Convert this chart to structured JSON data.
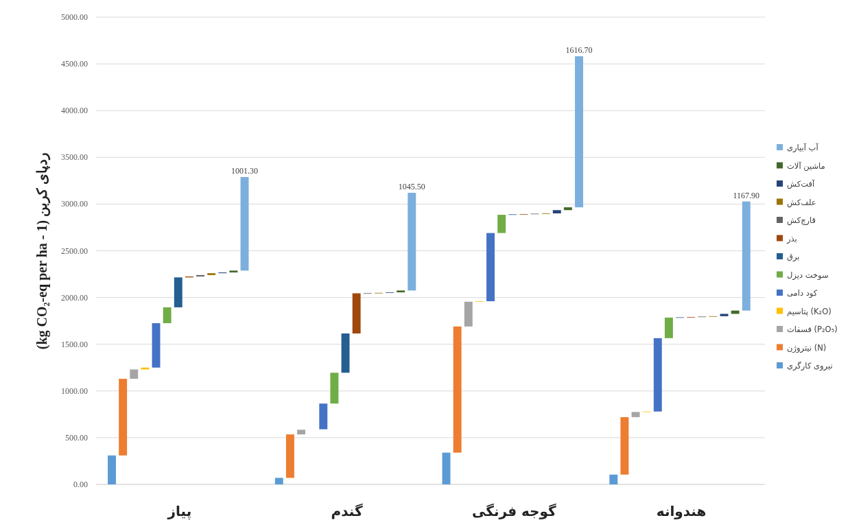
{
  "chart_data": {
    "type": "bar",
    "ylabel": "(kg CO₂-eq per ha - 1) ردپای کربن",
    "categories": [
      "پیاز",
      "گندم",
      "گوجه فرنگی",
      "هندوانه"
    ],
    "ylim": [
      0,
      5000
    ],
    "yticks": [
      {
        "value": 0,
        "label": "0.00"
      },
      {
        "value": 500,
        "label": "500.00"
      },
      {
        "value": 1000,
        "label": "1000.00"
      },
      {
        "value": 1500,
        "label": "1500.00"
      },
      {
        "value": 2000,
        "label": "2000.00"
      },
      {
        "value": 2500,
        "label": "2500.00"
      },
      {
        "value": 3000,
        "label": "3000.00"
      },
      {
        "value": 3500,
        "label": "3500.00"
      },
      {
        "value": 4000,
        "label": "4000.00"
      },
      {
        "value": 4500,
        "label": "4500.00"
      },
      {
        "value": 5000,
        "label": "5000.00"
      }
    ],
    "grid": "y",
    "legend": "right",
    "series": [
      {
        "name": "نیروی کارگری",
        "color": "#5b9bd5",
        "values": [
          310,
          70,
          340,
          105
        ],
        "base": [
          0,
          0,
          0,
          0
        ]
      },
      {
        "name": "نیتروژن (N)",
        "color": "#ed7d31",
        "values": [
          820,
          465,
          1350,
          615
        ],
        "base": [
          310,
          70,
          340,
          105
        ]
      },
      {
        "name": "فسفات (P₂O₅)",
        "color": "#a5a5a5",
        "values": [
          100,
          50,
          265,
          55
        ],
        "base": [
          1130,
          535,
          1690,
          720
        ]
      },
      {
        "name": "پتاسیم (K₂O)",
        "color": "#ffc000",
        "values": [
          20,
          null,
          5,
          5
        ],
        "base": [
          1230,
          null,
          1955,
          775
        ]
      },
      {
        "name": "کود دامی",
        "color": "#4472c4",
        "values": [
          475,
          275,
          730,
          785
        ],
        "base": [
          1250,
          590,
          1960,
          780
        ]
      },
      {
        "name": "سوخت دیزل",
        "color": "#70ad47",
        "values": [
          170,
          330,
          195,
          220
        ],
        "base": [
          1725,
          865,
          2690,
          1565
        ]
      },
      {
        "name": "برق",
        "color": "#255e91",
        "values": [
          320,
          420,
          5,
          3
        ],
        "base": [
          1895,
          1195,
          2885,
          1785
        ]
      },
      {
        "name": "بذر",
        "color": "#9e480e",
        "values": [
          10,
          430,
          3,
          4
        ],
        "base": [
          2215,
          1615,
          2890,
          1788
        ]
      },
      {
        "name": "قارچ‌کش",
        "color": "#636363",
        "values": [
          15,
          3,
          4,
          4
        ],
        "base": [
          2225,
          2045,
          2893,
          1792
        ]
      },
      {
        "name": "علف‌کش",
        "color": "#997300",
        "values": [
          20,
          2,
          3,
          4
        ],
        "base": [
          2240,
          2048,
          2897,
          1796
        ]
      },
      {
        "name": "آفت‌کش",
        "color": "#264478",
        "values": [
          8,
          5,
          35,
          25
        ],
        "base": [
          2260,
          2050,
          2900,
          1800
        ]
      },
      {
        "name": "ماشین آلات",
        "color": "#43682b",
        "values": [
          20,
          20,
          30,
          35
        ],
        "base": [
          2268,
          2055,
          2935,
          1825
        ]
      },
      {
        "name": "آب آبیاری",
        "color": "#7cafdd",
        "values": [
          1001.3,
          1045.5,
          1616.7,
          1167.9
        ],
        "base": [
          2288,
          2075,
          2965,
          1860
        ],
        "value_labels": [
          "1001.30",
          "1045.50",
          "1616.70",
          "1167.90"
        ]
      }
    ]
  }
}
